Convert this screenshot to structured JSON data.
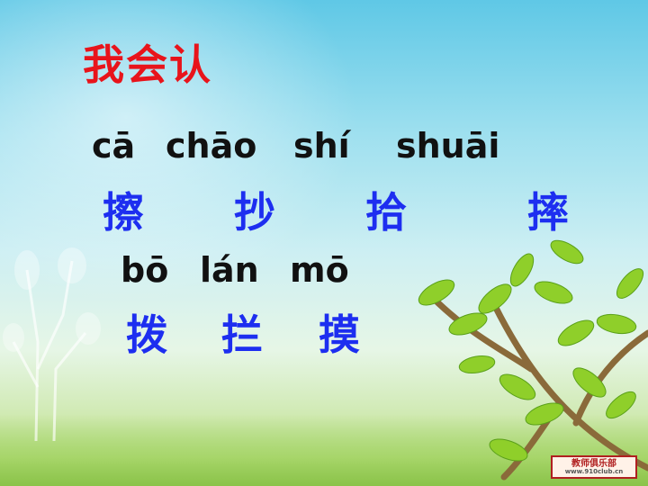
{
  "slide": {
    "title": "我会认",
    "pinyin_row1": [
      "cā",
      "chāo",
      "shí",
      "shuāi"
    ],
    "hanzi_row1": [
      "擦",
      "抄",
      "拾",
      "摔"
    ],
    "pinyin_row2": [
      "bō",
      "lán",
      "mō"
    ],
    "hanzi_row2": [
      "拨",
      "拦",
      "摸"
    ]
  },
  "footer": {
    "logo_text": "教师俱乐部",
    "logo_url": "www.910club.cn"
  },
  "colors": {
    "title": "#e8141b",
    "hanzi": "#1d2ef0",
    "pinyin": "#111111"
  },
  "icons": [
    "tree-branch-icon",
    "light-tree-icon"
  ]
}
